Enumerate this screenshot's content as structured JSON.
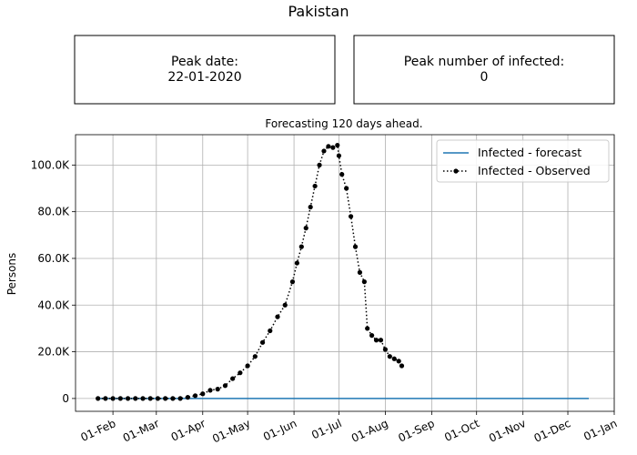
{
  "figure_title": "Pakistan",
  "info_boxes": [
    {
      "label": "Peak date:",
      "value": "22-01-2020"
    },
    {
      "label": "Peak number of infected:",
      "value": "0"
    }
  ],
  "chart_data": {
    "type": "line",
    "title": "Forecasting 120 days ahead.",
    "xlabel": "",
    "ylabel": "Persons",
    "x_axis": {
      "scale": "date",
      "range": [
        "2020-01-07",
        "2021-01-01"
      ],
      "tick_dates": [
        "2020-02-01",
        "2020-03-01",
        "2020-04-01",
        "2020-05-01",
        "2020-06-01",
        "2020-07-01",
        "2020-08-01",
        "2020-09-01",
        "2020-10-01",
        "2020-11-01",
        "2020-12-01",
        "2021-01-01"
      ],
      "tick_labels": [
        "01-Feb",
        "01-Mar",
        "01-Apr",
        "01-May",
        "01-Jun",
        "01-Jul",
        "01-Aug",
        "01-Sep",
        "01-Oct",
        "01-Nov",
        "01-Dec",
        "01-Jan"
      ],
      "tick_rotation": "diagonal"
    },
    "y_axis": {
      "range": [
        -5500,
        113000
      ],
      "tick_values": [
        0,
        20000,
        40000,
        60000,
        80000,
        100000
      ],
      "tick_labels": [
        "0",
        "20.0K",
        "40.0K",
        "60.0K",
        "80.0K",
        "100.0K"
      ]
    },
    "grid": true,
    "legend": "top-right",
    "series": [
      {
        "name": "Infected - forecast",
        "style": "solid",
        "color": "#1f77b4",
        "points": [
          [
            "2020-01-22",
            0
          ],
          [
            "2020-12-15",
            0
          ]
        ]
      },
      {
        "name": "Infected - Observed",
        "style": "dotted-markers",
        "color": "#000000",
        "points": [
          [
            "2020-01-22",
            0
          ],
          [
            "2020-01-27",
            0
          ],
          [
            "2020-02-01",
            0
          ],
          [
            "2020-02-06",
            0
          ],
          [
            "2020-02-11",
            0
          ],
          [
            "2020-02-16",
            0
          ],
          [
            "2020-02-21",
            0
          ],
          [
            "2020-02-26",
            0
          ],
          [
            "2020-03-02",
            0
          ],
          [
            "2020-03-07",
            0
          ],
          [
            "2020-03-12",
            0
          ],
          [
            "2020-03-17",
            0
          ],
          [
            "2020-03-22",
            500
          ],
          [
            "2020-03-27",
            1200
          ],
          [
            "2020-04-01",
            2000
          ],
          [
            "2020-04-06",
            3500
          ],
          [
            "2020-04-11",
            4000
          ],
          [
            "2020-04-16",
            5500
          ],
          [
            "2020-04-21",
            8500
          ],
          [
            "2020-04-26",
            11000
          ],
          [
            "2020-05-01",
            14000
          ],
          [
            "2020-05-06",
            18000
          ],
          [
            "2020-05-11",
            24000
          ],
          [
            "2020-05-16",
            29000
          ],
          [
            "2020-05-21",
            35000
          ],
          [
            "2020-05-26",
            40000
          ],
          [
            "2020-05-31",
            50000
          ],
          [
            "2020-06-03",
            58000
          ],
          [
            "2020-06-06",
            65000
          ],
          [
            "2020-06-09",
            73000
          ],
          [
            "2020-06-12",
            82000
          ],
          [
            "2020-06-15",
            91000
          ],
          [
            "2020-06-18",
            100000
          ],
          [
            "2020-06-21",
            106000
          ],
          [
            "2020-06-24",
            108000
          ],
          [
            "2020-06-27",
            107500
          ],
          [
            "2020-06-30",
            108500
          ],
          [
            "2020-07-01",
            104000
          ],
          [
            "2020-07-03",
            96000
          ],
          [
            "2020-07-06",
            90000
          ],
          [
            "2020-07-09",
            78000
          ],
          [
            "2020-07-12",
            65000
          ],
          [
            "2020-07-15",
            54000
          ],
          [
            "2020-07-18",
            50000
          ],
          [
            "2020-07-20",
            30000
          ],
          [
            "2020-07-23",
            27000
          ],
          [
            "2020-07-26",
            25000
          ],
          [
            "2020-07-29",
            25000
          ],
          [
            "2020-08-01",
            21000
          ],
          [
            "2020-08-04",
            18000
          ],
          [
            "2020-08-07",
            17000
          ],
          [
            "2020-08-10",
            16000
          ],
          [
            "2020-08-12",
            14000
          ]
        ]
      }
    ]
  }
}
